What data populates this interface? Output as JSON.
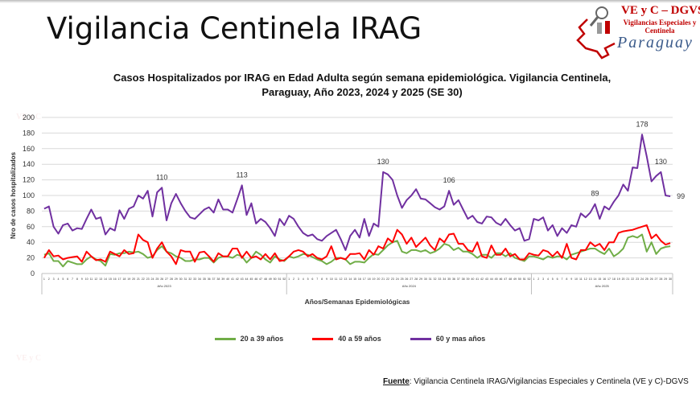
{
  "slide_title": "Vigilancia Centinela IRAG",
  "logo": {
    "line1": "VE y C – DGVS",
    "line2": "Vigilancias Especiales y Centinela",
    "line3": "Paraguay"
  },
  "source": {
    "label": "Fuente",
    "text": ": Vigilancia  Centinela IRAG/Vigilancias Especiales y Centinela (VE y C)-DGVS"
  },
  "chart_data": {
    "type": "line",
    "title_line1": "Casos Hospitalizados por IRAG en Edad Adulta según semana epidemiológica. Vigilancia Centinela,",
    "title_line2": "Paraguay, Año 2023, 2024 y 2025 (SE 30)",
    "ylabel": "Nro de casos hospitalizados",
    "xlabel": "Años/Semanas Epidemiológicas",
    "ylim": [
      0,
      200
    ],
    "yticks": [
      0,
      20,
      40,
      60,
      80,
      100,
      120,
      140,
      160,
      180,
      200
    ],
    "grid": true,
    "legend_placement": "bottom",
    "years": [
      {
        "label": "Año 2023",
        "weeks": 52
      },
      {
        "label": "Año 2024",
        "weeks": 52
      },
      {
        "label": "Año 2025",
        "weeks": 30
      }
    ],
    "series": [
      {
        "name": "20 a 39 años",
        "color": "#70ad47",
        "values": [
          24,
          26,
          16,
          16,
          9,
          16,
          14,
          12,
          12,
          18,
          22,
          18,
          16,
          10,
          25,
          24,
          26,
          26,
          28,
          27,
          28,
          25,
          20,
          22,
          30,
          35,
          28,
          26,
          22,
          20,
          16,
          16,
          18,
          18,
          20,
          20,
          14,
          20,
          22,
          22,
          20,
          24,
          22,
          14,
          20,
          28,
          24,
          18,
          14,
          22,
          18,
          16,
          22,
          20,
          22,
          25,
          24,
          21,
          18,
          16,
          12,
          15,
          20,
          20,
          18,
          12,
          15,
          15,
          14,
          20,
          25,
          24,
          30,
          36,
          40,
          42,
          28,
          26,
          30,
          30,
          28,
          30,
          26,
          28,
          32,
          38,
          36,
          30,
          33,
          28,
          28,
          25,
          20,
          24,
          24,
          20,
          26,
          26,
          22,
          26,
          20,
          18,
          16,
          22,
          22,
          20,
          18,
          22,
          20,
          22,
          22,
          18,
          24,
          26,
          28,
          30,
          32,
          32,
          28,
          25,
          32,
          22,
          26,
          32,
          46,
          48,
          46,
          50,
          28,
          40,
          25,
          32,
          34,
          35
        ]
      },
      {
        "name": "40 a 59 años",
        "color": "#ff0000",
        "values": [
          20,
          30,
          22,
          23,
          18,
          20,
          21,
          22,
          15,
          28,
          22,
          17,
          18,
          15,
          28,
          25,
          22,
          30,
          25,
          26,
          50,
          43,
          40,
          20,
          32,
          40,
          28,
          22,
          12,
          30,
          28,
          28,
          15,
          27,
          28,
          22,
          15,
          26,
          22,
          22,
          32,
          32,
          20,
          28,
          20,
          22,
          18,
          25,
          18,
          26,
          16,
          17,
          22,
          28,
          30,
          28,
          22,
          25,
          20,
          18,
          22,
          35,
          18,
          20,
          18,
          25,
          25,
          26,
          18,
          30,
          24,
          35,
          32,
          45,
          40,
          56,
          50,
          38,
          46,
          34,
          40,
          46,
          36,
          30,
          45,
          40,
          50,
          51,
          38,
          38,
          30,
          28,
          40,
          22,
          20,
          36,
          24,
          24,
          32,
          22,
          25,
          18,
          18,
          26,
          24,
          23,
          30,
          28,
          22,
          28,
          20,
          38,
          20,
          18,
          30,
          30,
          40,
          35,
          38,
          30,
          40,
          40,
          52,
          54,
          55,
          56,
          58,
          60,
          62,
          45,
          50,
          42,
          37,
          39
        ]
      },
      {
        "name": "60 y mas años",
        "color": "#7030a0",
        "values": [
          83,
          86,
          60,
          51,
          62,
          64,
          55,
          58,
          57,
          70,
          82,
          70,
          72,
          50,
          58,
          55,
          81,
          70,
          83,
          86,
          100,
          96,
          106,
          73,
          104,
          110,
          68,
          90,
          102,
          90,
          80,
          72,
          70,
          76,
          82,
          85,
          78,
          95,
          82,
          82,
          78,
          95,
          113,
          75,
          90,
          64,
          70,
          66,
          58,
          48,
          70,
          62,
          74,
          70,
          60,
          52,
          48,
          50,
          44,
          42,
          48,
          52,
          56,
          44,
          30,
          48,
          56,
          46,
          70,
          48,
          64,
          60,
          130,
          127,
          120,
          100,
          84,
          94,
          100,
          108,
          96,
          95,
          90,
          85,
          82,
          86,
          106,
          88,
          94,
          82,
          70,
          74,
          66,
          64,
          73,
          72,
          65,
          62,
          70,
          62,
          55,
          58,
          42,
          44,
          70,
          68,
          72,
          55,
          62,
          48,
          58,
          52,
          62,
          60,
          77,
          72,
          78,
          89,
          70,
          86,
          82,
          92,
          100,
          114,
          106,
          136,
          135,
          178,
          150,
          118,
          125,
          130,
          100,
          99
        ]
      }
    ],
    "data_labels": [
      {
        "series": 2,
        "index": 25,
        "text": "110"
      },
      {
        "series": 2,
        "index": 42,
        "text": "113"
      },
      {
        "series": 2,
        "index": 72,
        "text": "130"
      },
      {
        "series": 2,
        "index": 86,
        "text": "106"
      },
      {
        "series": 2,
        "index": 117,
        "text": "89"
      },
      {
        "series": 2,
        "index": 127,
        "text": "178"
      },
      {
        "series": 2,
        "index": 131,
        "text": "130"
      },
      {
        "series": 2,
        "index": 133,
        "text": "99"
      }
    ]
  }
}
